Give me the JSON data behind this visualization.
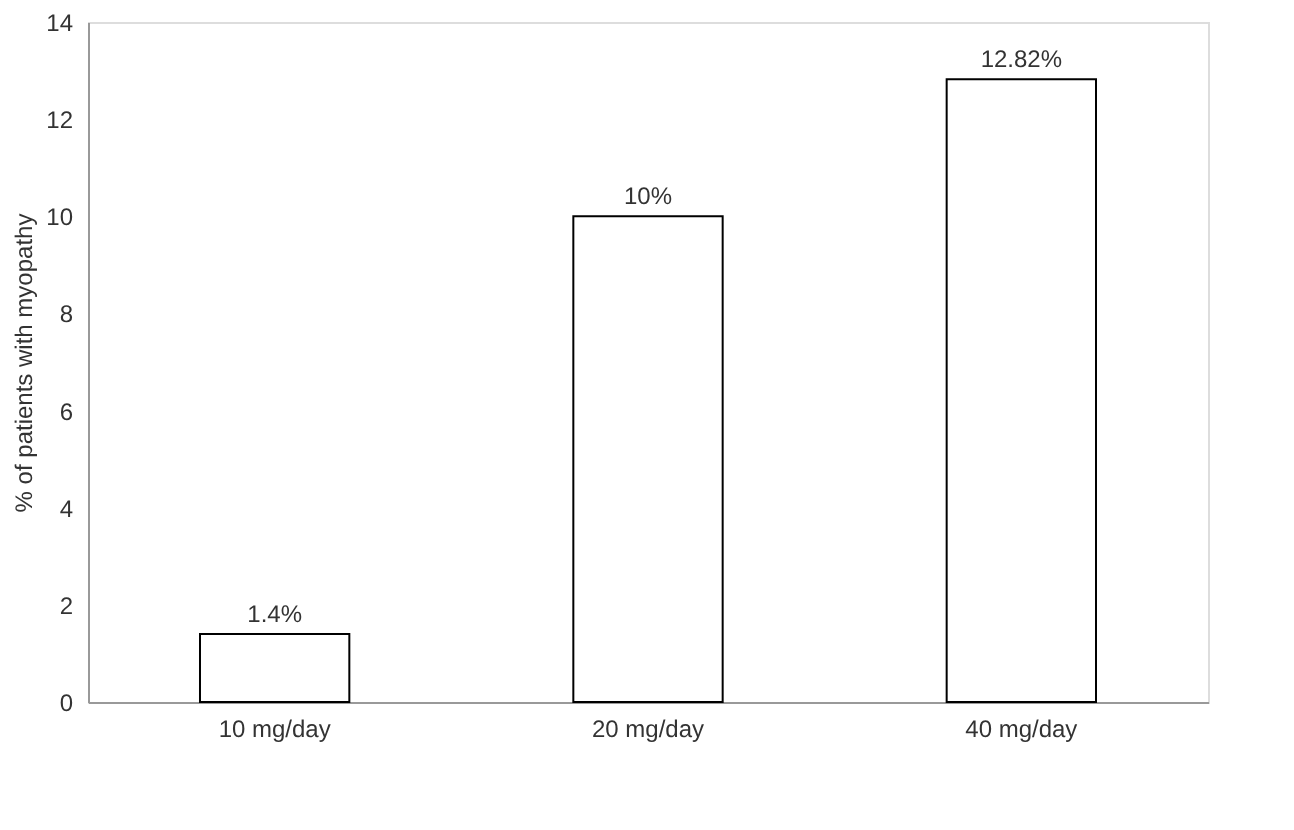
{
  "chart_data": {
    "type": "bar",
    "ylabel": "% of patients with myopathy",
    "categories": [
      "10 mg/day",
      "20 mg/day",
      "40 mg/day"
    ],
    "values": [
      1.4,
      10,
      12.82
    ],
    "value_labels": [
      "1.4%",
      "10%",
      "12.82%"
    ],
    "color": "#ffffff",
    "ylim": [
      0,
      14
    ],
    "yticks": [
      0,
      2,
      4,
      6,
      8,
      10,
      12,
      14
    ],
    "grid": false
  }
}
